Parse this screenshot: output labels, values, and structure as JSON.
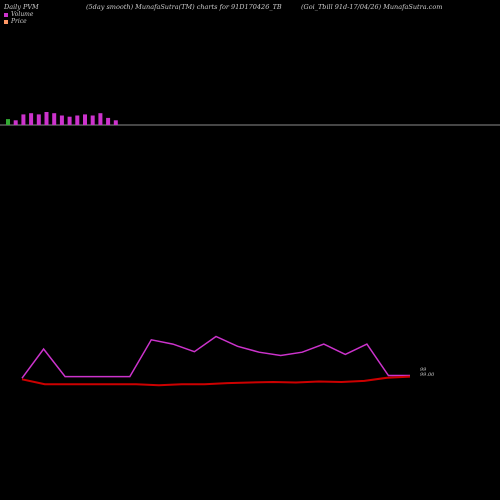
{
  "header": {
    "left": "Daily PVM",
    "middle": "(5day smooth) MunafaSutra(TM) charts for 91D170426_TB",
    "right": "(Goi_Tbill 91d-17/04/26) MunafaSutra.com"
  },
  "legend": {
    "volume_label": "Volume",
    "price_label": "Price",
    "volume_color": "#cc33cc",
    "price_color": "#ff9966"
  },
  "colors": {
    "volume_bar": "#cc33cc",
    "volume_bar_down": "#33aa33",
    "price_line": "#cc0000",
    "smooth_line": "#cc33cc",
    "baseline": "#bbbbbb"
  },
  "chart_data": [
    {
      "type": "bar",
      "series": [
        {
          "name": "Volume",
          "values": [
            5,
            4,
            9,
            10,
            9,
            11,
            10,
            8,
            7,
            8,
            9,
            8,
            10,
            6,
            4
          ]
        }
      ],
      "down_bars": [
        0
      ]
    },
    {
      "type": "line",
      "series": [
        {
          "name": "Price",
          "values": [
            98.9,
            98.0,
            98.0,
            98.0,
            98.0,
            98.0,
            97.8,
            98.0,
            98.0,
            98.2,
            98.3,
            98.4,
            98.3,
            98.5,
            98.4,
            98.6,
            99.2,
            99.4
          ]
        },
        {
          "name": "Volume",
          "values": [
            99.1,
            104.5,
            99.4,
            99.4,
            99.4,
            99.4,
            106.2,
            105.4,
            104.0,
            106.8,
            105.0,
            103.9,
            103.3,
            103.9,
            105.4,
            103.5,
            105.4,
            99.6,
            99.6
          ]
        }
      ],
      "price_label": "99",
      "volume_label": "99.00"
    }
  ]
}
